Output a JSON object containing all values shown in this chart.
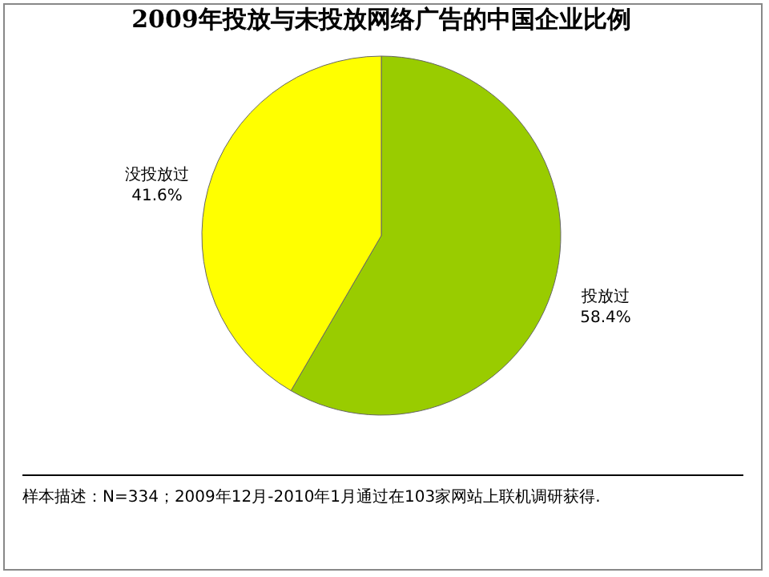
{
  "chart_data": {
    "type": "pie",
    "title": "2009年投放与未投放网络广告的中国企业比例",
    "categories": [
      "投放过",
      "没投放过"
    ],
    "values": [
      58.4,
      41.6
    ],
    "colors": [
      "#99cc00",
      "#ffff00"
    ],
    "value_labels": [
      "58.4%",
      "41.6%"
    ],
    "annotations": [
      "样本描述：N=334；2009年12月-2010年1月通过在103家网站上联机调研获得."
    ]
  }
}
